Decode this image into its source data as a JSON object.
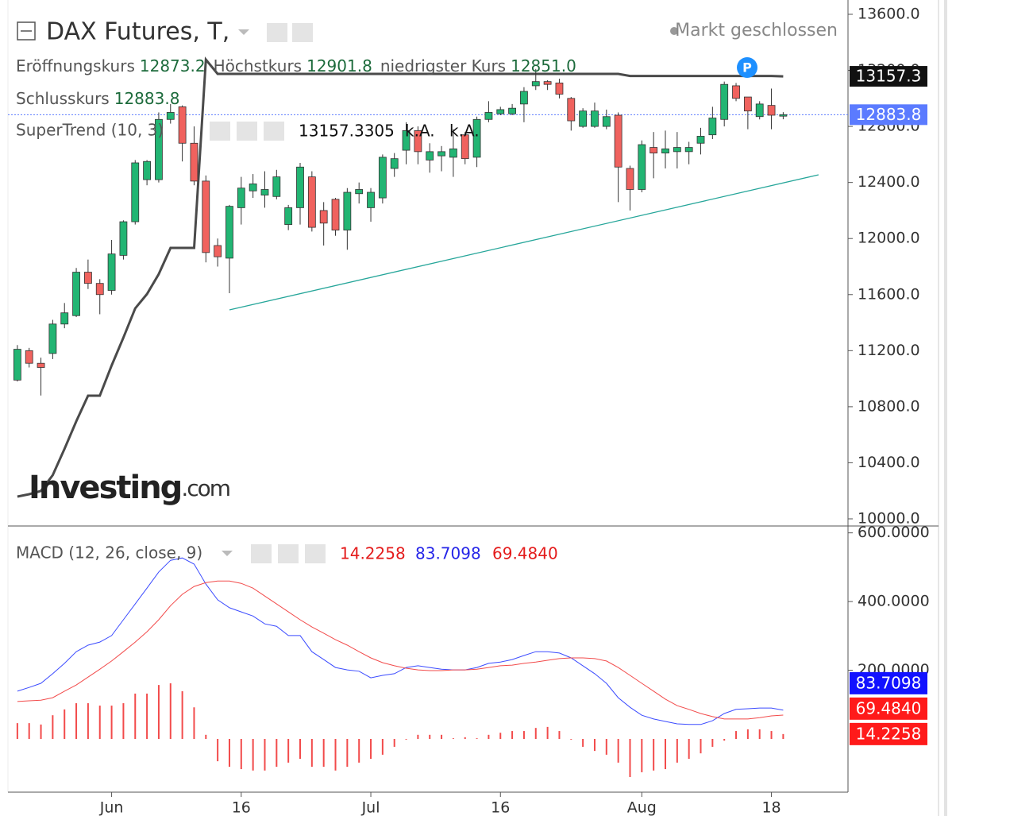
{
  "header": {
    "title": "DAX Futures, T,",
    "status": "Markt geschlossen",
    "open_label": "Eröffnungskurs",
    "high_label": "Höchstkurs",
    "low_label": "niedrigster Kurs",
    "close_label": "Schlusskurs",
    "logo": "Investing",
    "logo_suffix": ".com"
  },
  "chart_data": [
    {
      "type": "candlestick",
      "x": [
        0,
        1,
        2,
        3,
        4,
        5,
        6,
        7,
        8,
        9,
        10,
        11,
        12,
        13,
        14,
        15,
        16,
        17,
        18,
        19,
        20,
        21,
        22,
        23,
        24,
        25,
        26,
        27,
        28,
        29,
        30,
        31,
        32,
        33,
        34,
        35,
        36,
        37,
        38,
        39,
        40,
        41,
        42,
        43,
        44,
        45,
        46,
        47,
        48,
        49,
        50,
        51,
        52,
        53,
        54,
        55,
        56,
        57,
        58,
        59,
        60,
        61,
        62,
        63,
        64,
        65
      ],
      "xlim": [
        -0.8,
        70.5
      ],
      "xticks": [
        {
          "value": 8,
          "label": "Jun"
        },
        {
          "value": 19,
          "label": "16"
        },
        {
          "value": 30,
          "label": "Jul"
        },
        {
          "value": 41,
          "label": "16"
        },
        {
          "value": 53,
          "label": "Aug"
        },
        {
          "value": 64,
          "label": "18"
        }
      ],
      "ylim": [
        9949,
        13702
      ],
      "yticks": [
        {
          "value": 10000,
          "label": "10000.0"
        },
        {
          "value": 10400,
          "label": "10400.0"
        },
        {
          "value": 10800,
          "label": "10800.0"
        },
        {
          "value": 11200,
          "label": "11200.0"
        },
        {
          "value": 11600,
          "label": "11600.0"
        },
        {
          "value": 12000,
          "label": "12000.0"
        },
        {
          "value": 12400,
          "label": "12400.0"
        },
        {
          "value": 12800,
          "label": "12800.0"
        },
        {
          "value": 13200,
          "label": "13200.0"
        },
        {
          "value": 13600,
          "label": "13600.0"
        }
      ],
      "candles": {
        "up_color": "#22b573",
        "down_color": "#f0625e",
        "open": [
          10990,
          11200,
          11110,
          11180,
          11390,
          11450,
          11760,
          11680,
          11630,
          11880,
          12120,
          12420,
          12420,
          12850,
          12940,
          12680,
          12410,
          11950,
          11860,
          12220,
          12340,
          12310,
          12300,
          12100,
          12220,
          12440,
          12200,
          12280,
          12060,
          12320,
          12220,
          12290,
          12500,
          12630,
          12770,
          12560,
          12590,
          12580,
          12740,
          12580,
          12850,
          12890,
          12890,
          12960,
          13090,
          13120,
          13110,
          13000,
          12800,
          12800,
          12800,
          12880,
          12500,
          12350,
          12650,
          12610,
          12620,
          12620,
          12680,
          12740,
          12850,
          13090,
          13010,
          12870,
          12950,
          12873.2
        ],
        "high": [
          11240,
          11220,
          11150,
          11420,
          11540,
          11790,
          11850,
          11710,
          11990,
          12130,
          12560,
          12560,
          12900,
          12960,
          12950,
          12800,
          12450,
          12000,
          12240,
          12440,
          12460,
          12480,
          12490,
          12240,
          12540,
          12480,
          12260,
          12290,
          12360,
          12400,
          12360,
          12600,
          12610,
          12830,
          12800,
          12680,
          12660,
          12780,
          12760,
          12870,
          12980,
          12940,
          12960,
          13080,
          13210,
          13130,
          13140,
          13010,
          12930,
          12970,
          12920,
          12900,
          12520,
          12700,
          12760,
          12770,
          12760,
          12690,
          12790,
          12940,
          13120,
          13110,
          13010,
          12980,
          13070,
          12901.8
        ],
        "low": [
          10980,
          11080,
          10880,
          11140,
          11360,
          11440,
          11640,
          11460,
          11600,
          11850,
          12100,
          12380,
          12400,
          12820,
          12550,
          12380,
          11830,
          11800,
          11610,
          12100,
          12290,
          12220,
          12280,
          12060,
          12100,
          12050,
          11950,
          12020,
          11920,
          12250,
          12120,
          12250,
          12440,
          12530,
          12530,
          12470,
          12480,
          12440,
          12530,
          12510,
          12830,
          12880,
          12880,
          12830,
          13060,
          13060,
          13000,
          12770,
          12790,
          12790,
          12780,
          12260,
          12200,
          12330,
          12430,
          12500,
          12500,
          12530,
          12600,
          12710,
          12800,
          12980,
          12780,
          12850,
          12780,
          12851.0
        ],
        "close": [
          11210,
          11110,
          11080,
          11390,
          11470,
          11760,
          11680,
          11600,
          11890,
          12120,
          12540,
          12550,
          12850,
          12900,
          12680,
          12410,
          11900,
          11870,
          12230,
          12360,
          12390,
          12350,
          12440,
          12220,
          12510,
          12080,
          12110,
          12060,
          12330,
          12350,
          12330,
          12580,
          12570,
          12770,
          12620,
          12620,
          12620,
          12640,
          12570,
          12850,
          12900,
          12920,
          12930,
          13050,
          13120,
          13100,
          13030,
          12840,
          12910,
          12910,
          12870,
          12510,
          12350,
          12670,
          12610,
          12640,
          12650,
          12650,
          12730,
          12860,
          13100,
          13000,
          12910,
          12960,
          12880,
          12883.8
        ],
        "value_labels": {
          "open": "12873.2",
          "high": "12901.8",
          "low": "12851.0",
          "close": "12883.8"
        },
        "price_line_color": "#5b7bff"
      },
      "series": [
        {
          "name": "SuperTrend (10, 3)",
          "color": "#4a4a4a",
          "values": [
            10159,
            10176,
            10199,
            10312,
            10499,
            10697,
            10879,
            10879,
            11094,
            11293,
            11502,
            11604,
            11746,
            11933,
            11933,
            11933,
            13277,
            13175,
            13175,
            13175,
            13175,
            13175,
            13175,
            13175,
            13175,
            13175,
            13175,
            13175,
            13175,
            13175,
            13175,
            13175,
            13175,
            13175,
            13175,
            13175,
            13175,
            13175,
            13175,
            13175,
            13175,
            13175,
            13175,
            13175,
            13175,
            13175,
            13175,
            13175,
            13175,
            13175,
            13175,
            13175,
            13160,
            13160,
            13160,
            13160,
            13160,
            13160,
            13160,
            13160,
            13160,
            13160,
            13160,
            13160,
            13160,
            13157.3305
          ],
          "tag_label": "13157.3",
          "extra_labels": [
            "k.A.",
            "k.A."
          ]
        }
      ],
      "trendline": {
        "x": [
          18,
          68
        ],
        "values": [
          11491,
          12455
        ],
        "color": "#26a69a"
      }
    },
    {
      "type": "macd",
      "x": [
        0,
        1,
        2,
        3,
        4,
        5,
        6,
        7,
        8,
        9,
        10,
        11,
        12,
        13,
        14,
        15,
        16,
        17,
        18,
        19,
        20,
        21,
        22,
        23,
        24,
        25,
        26,
        27,
        28,
        29,
        30,
        31,
        32,
        33,
        34,
        35,
        36,
        37,
        38,
        39,
        40,
        41,
        42,
        43,
        44,
        45,
        46,
        47,
        48,
        49,
        50,
        51,
        52,
        53,
        54,
        55,
        56,
        57,
        58,
        59,
        60,
        61,
        62,
        63,
        64,
        65
      ],
      "name": "MACD (12, 26, close, 9)",
      "ylim": [
        -155,
        620
      ],
      "yticks": [
        {
          "value": 200,
          "label": "200.0000"
        },
        {
          "value": 400,
          "label": "400.0000"
        },
        {
          "value": 600,
          "label": "600.0000"
        }
      ],
      "series": [
        {
          "color": "#3b4bff",
          "values": [
            139,
            150,
            162,
            190,
            220,
            254,
            273,
            282,
            301,
            347,
            393,
            439,
            486,
            520,
            527,
            509,
            451,
            405,
            382,
            370,
            358,
            335,
            328,
            301,
            301,
            254,
            231,
            208,
            201,
            197,
            178,
            185,
            190,
            208,
            213,
            208,
            203,
            201,
            201,
            208,
            220,
            224,
            231,
            243,
            254,
            254,
            250,
            236,
            213,
            190,
            162,
            120,
            92,
            69,
            58,
            51,
            44,
            42,
            42,
            53,
            74,
            86,
            88,
            90,
            90,
            83.7098
          ],
          "value_label": "83.7098"
        },
        {
          "color": "#f24b4b",
          "values": [
            109,
            111,
            113,
            120,
            139,
            157,
            180,
            203,
            227,
            254,
            282,
            312,
            347,
            388,
            421,
            444,
            455,
            460,
            460,
            453,
            439,
            416,
            393,
            370,
            347,
            326,
            308,
            289,
            273,
            254,
            236,
            222,
            213,
            206,
            201,
            199,
            199,
            201,
            201,
            203,
            208,
            213,
            215,
            220,
            224,
            229,
            234,
            236,
            236,
            234,
            227,
            208,
            185,
            162,
            139,
            116,
            97,
            86,
            74,
            65,
            58,
            58,
            58,
            62,
            67,
            69.484
          ],
          "value_label": "69.4840"
        },
        {
          "color": "#f24b4b",
          "values": [
            46,
            46,
            42,
            69,
            86,
            104,
            104,
            97,
            97,
            104,
            132,
            132,
            157,
            162,
            139,
            92,
            12,
            -65,
            -81,
            -88,
            -92,
            -92,
            -81,
            -69,
            -58,
            -81,
            -81,
            -92,
            -81,
            -69,
            -58,
            -46,
            -23,
            -2,
            12,
            12,
            12,
            2,
            5,
            2,
            12,
            18,
            23,
            23,
            32,
            35,
            23,
            -2,
            -23,
            -35,
            -46,
            -69,
            -111,
            -97,
            -92,
            -88,
            -69,
            -58,
            -42,
            -23,
            -5,
            23,
            28,
            28,
            23,
            14.2258
          ],
          "value_label": "14.2258"
        }
      ]
    }
  ]
}
